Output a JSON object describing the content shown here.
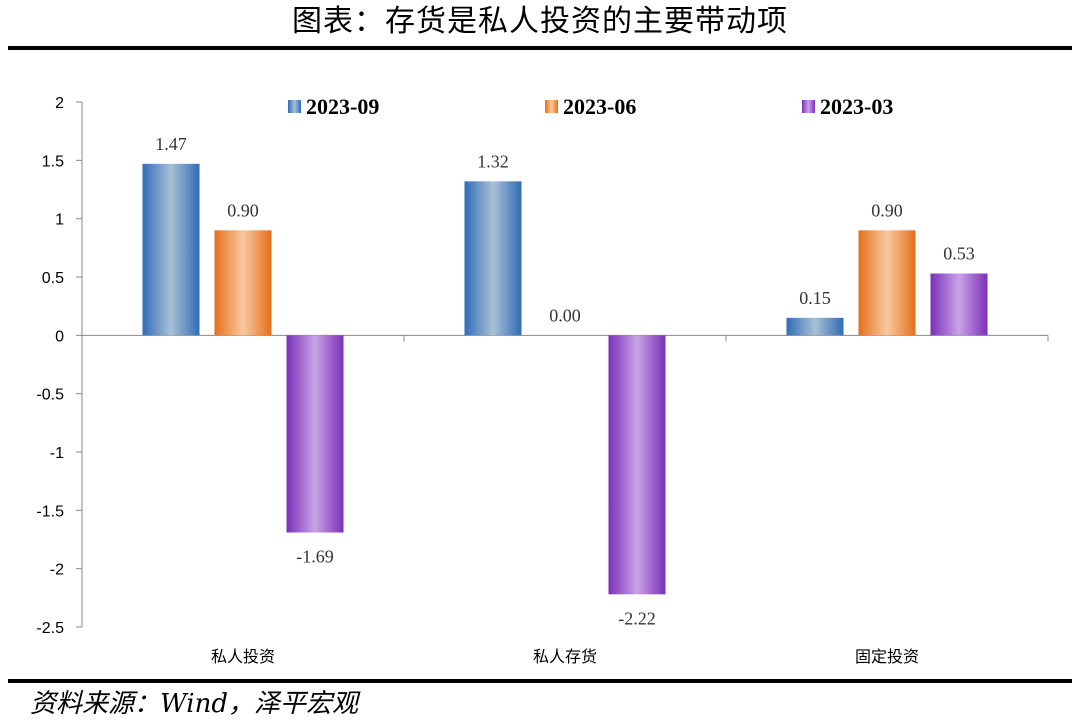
{
  "page": {
    "title": "图表：存货是私人投资的主要带动项",
    "source": "资料来源：Wind，泽平宏观"
  },
  "chart_data": {
    "type": "bar",
    "categories": [
      "私人投资",
      "私人存货",
      "固定投资"
    ],
    "series": [
      {
        "name": "2023-09",
        "values": [
          1.47,
          1.32,
          0.15
        ],
        "color": "#5b8fc9"
      },
      {
        "name": "2023-06",
        "values": [
          0.9,
          0.0,
          0.9
        ],
        "color": "#f08a3c"
      },
      {
        "name": "2023-03",
        "values": [
          -1.69,
          -2.22,
          0.53
        ],
        "color": "#9b59d0"
      }
    ],
    "data_labels": [
      [
        "1.47",
        "1.32",
        "0.15"
      ],
      [
        "0.90",
        "0.00",
        "0.90"
      ],
      [
        "-1.69",
        "-2.22",
        "0.53"
      ]
    ],
    "ylim": [
      -2.5,
      2
    ],
    "yticks": [
      2,
      1.5,
      1,
      0.5,
      0,
      -0.5,
      -1,
      -1.5,
      -2,
      -2.5
    ],
    "ytick_labels": [
      "2",
      "1.5",
      "1",
      "0.5",
      "0",
      "-0.5",
      "-1",
      "-1.5",
      "-2",
      "-2.5"
    ],
    "legend_position": "top",
    "grid": false
  }
}
